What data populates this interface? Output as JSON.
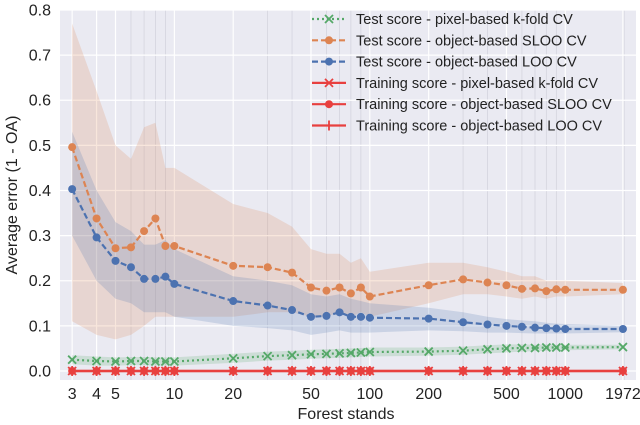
{
  "chart_data": {
    "type": "line",
    "title": "",
    "xlabel": "Forest stands",
    "ylabel": "Average error  (1 - OA)",
    "xscale": "log",
    "xlim": [
      2.6,
      2300
    ],
    "ylim": [
      -0.02,
      0.8
    ],
    "grid": true,
    "legend_position": "top-right",
    "x_ticks": [
      3,
      4,
      5,
      10,
      20,
      50,
      100,
      200,
      500,
      1000,
      1972
    ],
    "x_tick_labels": [
      "3",
      "4",
      "5",
      "10",
      "20",
      "50",
      "100",
      "200",
      "500",
      "1000",
      "1972"
    ],
    "y_ticks": [
      0.0,
      0.1,
      0.2,
      0.3,
      0.4,
      0.5,
      0.6,
      0.7,
      0.8
    ],
    "y_tick_labels": [
      "0.0",
      "0.1",
      "0.2",
      "0.3",
      "0.4",
      "0.5",
      "0.6",
      "0.7",
      "0.8"
    ],
    "x": [
      3,
      4,
      5,
      6,
      7,
      8,
      9,
      10,
      20,
      30,
      40,
      50,
      60,
      70,
      80,
      90,
      100,
      200,
      300,
      400,
      500,
      600,
      700,
      800,
      900,
      1000,
      1972
    ],
    "series": [
      {
        "name": "Test score - pixel-based k-fold CV",
        "color": "#55a868",
        "style": "dotted",
        "marker": "x",
        "values": [
          0.025,
          0.022,
          0.021,
          0.022,
          0.022,
          0.021,
          0.021,
          0.021,
          0.028,
          0.033,
          0.035,
          0.037,
          0.038,
          0.039,
          0.04,
          0.041,
          0.042,
          0.043,
          0.045,
          0.048,
          0.05,
          0.051,
          0.051,
          0.052,
          0.052,
          0.052,
          0.053
        ],
        "band_low": [
          0.015,
          0.012,
          0.012,
          0.013,
          0.013,
          0.012,
          0.012,
          0.012,
          0.018,
          0.023,
          0.025,
          0.027,
          0.028,
          0.029,
          0.03,
          0.031,
          0.032,
          0.034,
          0.036,
          0.039,
          0.041,
          0.043,
          0.044,
          0.045,
          0.046,
          0.046,
          0.048
        ],
        "band_high": [
          0.035,
          0.032,
          0.03,
          0.031,
          0.031,
          0.03,
          0.03,
          0.03,
          0.038,
          0.043,
          0.045,
          0.047,
          0.048,
          0.049,
          0.05,
          0.051,
          0.052,
          0.052,
          0.054,
          0.057,
          0.059,
          0.059,
          0.058,
          0.059,
          0.058,
          0.058,
          0.058
        ]
      },
      {
        "name": "Test score - object-based SLOO CV",
        "color": "#dd8452",
        "style": "dashed",
        "marker": "o",
        "values": [
          0.496,
          0.338,
          0.272,
          0.274,
          0.31,
          0.338,
          0.277,
          0.277,
          0.233,
          0.23,
          0.218,
          0.185,
          0.178,
          0.185,
          0.172,
          0.185,
          0.165,
          0.19,
          0.203,
          0.196,
          0.19,
          0.182,
          0.183,
          0.177,
          0.181,
          0.18,
          0.18
        ],
        "band_low": [
          0.11,
          0.08,
          0.07,
          0.08,
          0.1,
          0.12,
          0.12,
          0.12,
          0.12,
          0.13,
          0.13,
          0.12,
          0.12,
          0.13,
          0.12,
          0.13,
          0.12,
          0.15,
          0.17,
          0.17,
          0.165,
          0.16,
          0.165,
          0.16,
          0.165,
          0.165,
          0.17
        ],
        "band_high": [
          0.77,
          0.62,
          0.5,
          0.47,
          0.54,
          0.55,
          0.45,
          0.45,
          0.37,
          0.35,
          0.32,
          0.27,
          0.26,
          0.26,
          0.24,
          0.25,
          0.22,
          0.24,
          0.24,
          0.23,
          0.22,
          0.21,
          0.21,
          0.2,
          0.2,
          0.2,
          0.195
        ]
      },
      {
        "name": "Test score - object-based LOO CV",
        "color": "#4c72b0",
        "style": "dashed",
        "marker": "o",
        "values": [
          0.403,
          0.296,
          0.244,
          0.23,
          0.204,
          0.204,
          0.209,
          0.193,
          0.155,
          0.145,
          0.135,
          0.12,
          0.122,
          0.13,
          0.12,
          0.12,
          0.118,
          0.116,
          0.108,
          0.103,
          0.1,
          0.098,
          0.096,
          0.095,
          0.094,
          0.093,
          0.093
        ],
        "band_low": [
          0.3,
          0.2,
          0.16,
          0.15,
          0.13,
          0.13,
          0.13,
          0.12,
          0.1,
          0.095,
          0.09,
          0.08,
          0.085,
          0.09,
          0.085,
          0.085,
          0.085,
          0.09,
          0.088,
          0.085,
          0.085,
          0.084,
          0.083,
          0.083,
          0.083,
          0.083,
          0.086
        ],
        "band_high": [
          0.53,
          0.4,
          0.33,
          0.31,
          0.28,
          0.28,
          0.29,
          0.27,
          0.21,
          0.2,
          0.19,
          0.17,
          0.165,
          0.17,
          0.16,
          0.155,
          0.15,
          0.14,
          0.13,
          0.12,
          0.115,
          0.112,
          0.11,
          0.107,
          0.105,
          0.104,
          0.1
        ]
      },
      {
        "name": "Training score - pixel-based k-fold CV",
        "color": "#e8403f",
        "style": "solid",
        "marker": "x",
        "values": [
          0,
          0,
          0,
          0,
          0,
          0,
          0,
          0,
          0,
          0,
          0,
          0,
          0,
          0,
          0,
          0,
          0,
          0,
          0,
          0,
          0,
          0,
          0,
          0,
          0,
          0,
          0
        ]
      },
      {
        "name": "Training score - object-based SLOO CV",
        "color": "#e8403f",
        "style": "solid",
        "marker": "o",
        "values": [
          0,
          0,
          0,
          0,
          0,
          0,
          0,
          0,
          0,
          0,
          0,
          0,
          0,
          0,
          0,
          0,
          0,
          0,
          0,
          0,
          0,
          0,
          0,
          0,
          0,
          0,
          0
        ]
      },
      {
        "name": "Training score - object-based LOO CV",
        "color": "#e8403f",
        "style": "solid",
        "marker": "|",
        "values": [
          0,
          0,
          0,
          0,
          0,
          0,
          0,
          0,
          0,
          0,
          0,
          0,
          0,
          0,
          0,
          0,
          0,
          0,
          0,
          0,
          0,
          0,
          0,
          0,
          0,
          0,
          0
        ]
      }
    ]
  }
}
